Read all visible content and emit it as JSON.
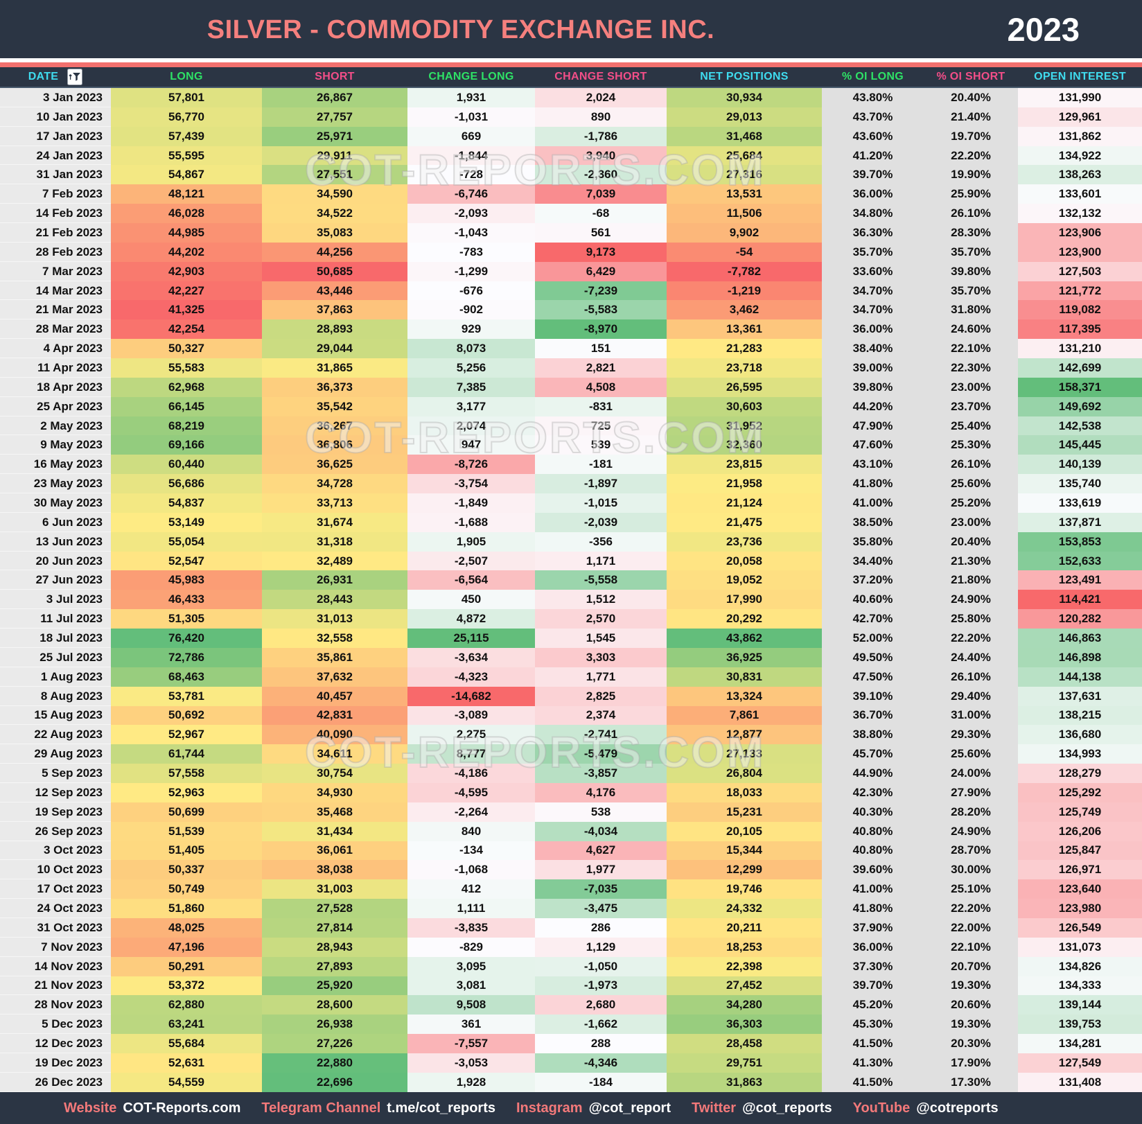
{
  "header": {
    "title": "SILVER - COMMODITY EXCHANGE INC.",
    "year": "2023"
  },
  "watermark": {
    "text": "COT-REPORTS.COM"
  },
  "columns": [
    {
      "key": "date",
      "label": "DATE",
      "color": "#3FDCEF",
      "scale": "none"
    },
    {
      "key": "long",
      "label": "LONG",
      "color": "#2EE266",
      "scale": "ryg"
    },
    {
      "key": "short",
      "label": "SHORT",
      "color": "#F34E88",
      "scale": "gyr"
    },
    {
      "key": "change_long",
      "label": "CHANGE LONG",
      "color": "#2EE266",
      "scale": "rwg"
    },
    {
      "key": "change_short",
      "label": "CHANGE SHORT",
      "color": "#F34E88",
      "scale": "gwr"
    },
    {
      "key": "net_positions",
      "label": "NET POSITIONS",
      "color": "#3FDCEF",
      "scale": "ryg"
    },
    {
      "key": "pct_oi_long",
      "label": "% OI LONG",
      "color": "#2EE266",
      "scale": "gray"
    },
    {
      "key": "pct_oi_short",
      "label": "% OI SHORT",
      "color": "#F34E88",
      "scale": "gray"
    },
    {
      "key": "open_interest",
      "label": "OPEN INTEREST",
      "color": "#3FDCEF",
      "scale": "rwg"
    }
  ],
  "scale_colors": {
    "red": "#F8696B",
    "yellow": "#FFEB84",
    "green": "#63BE7B",
    "white": "#FCFCFF",
    "gray": "#E0E0E0",
    "date_bg": "#EAEAEA"
  },
  "footer": {
    "items": [
      {
        "label": "Website",
        "value": "COT-Reports.com"
      },
      {
        "label": "Telegram Channel",
        "value": "t.me/cot_reports"
      },
      {
        "label": "Instagram",
        "value": "@cot_report"
      },
      {
        "label": "Twitter",
        "value": "@cot_reports"
      },
      {
        "label": "YouTube",
        "value": "@cotreports"
      }
    ]
  },
  "chart_data": {
    "type": "table",
    "title": "SILVER - COMMODITY EXCHANGE INC. 2023",
    "columns": [
      "DATE",
      "LONG",
      "SHORT",
      "CHANGE LONG",
      "CHANGE SHORT",
      "NET POSITIONS",
      "% OI LONG",
      "% OI SHORT",
      "OPEN INTEREST"
    ],
    "rows": [
      [
        "3 Jan 2023",
        57801,
        26867,
        1931,
        2024,
        30934,
        "43.80%",
        "20.40%",
        131990
      ],
      [
        "10 Jan 2023",
        56770,
        27757,
        -1031,
        890,
        29013,
        "43.70%",
        "21.40%",
        129961
      ],
      [
        "17 Jan 2023",
        57439,
        25971,
        669,
        -1786,
        31468,
        "43.60%",
        "19.70%",
        131862
      ],
      [
        "24 Jan 2023",
        55595,
        29911,
        -1844,
        3940,
        25684,
        "41.20%",
        "22.20%",
        134922
      ],
      [
        "31 Jan 2023",
        54867,
        27551,
        -728,
        -2360,
        27316,
        "39.70%",
        "19.90%",
        138263
      ],
      [
        "7 Feb 2023",
        48121,
        34590,
        -6746,
        7039,
        13531,
        "36.00%",
        "25.90%",
        133601
      ],
      [
        "14 Feb 2023",
        46028,
        34522,
        -2093,
        -68,
        11506,
        "34.80%",
        "26.10%",
        132132
      ],
      [
        "21 Feb 2023",
        44985,
        35083,
        -1043,
        561,
        9902,
        "36.30%",
        "28.30%",
        123906
      ],
      [
        "28 Feb 2023",
        44202,
        44256,
        -783,
        9173,
        -54,
        "35.70%",
        "35.70%",
        123900
      ],
      [
        "7 Mar 2023",
        42903,
        50685,
        -1299,
        6429,
        -7782,
        "33.60%",
        "39.80%",
        127503
      ],
      [
        "14 Mar 2023",
        42227,
        43446,
        -676,
        -7239,
        -1219,
        "34.70%",
        "35.70%",
        121772
      ],
      [
        "21 Mar 2023",
        41325,
        37863,
        -902,
        -5583,
        3462,
        "34.70%",
        "31.80%",
        119082
      ],
      [
        "28 Mar 2023",
        42254,
        28893,
        929,
        -8970,
        13361,
        "36.00%",
        "24.60%",
        117395
      ],
      [
        "4 Apr 2023",
        50327,
        29044,
        8073,
        151,
        21283,
        "38.40%",
        "22.10%",
        131210
      ],
      [
        "11 Apr 2023",
        55583,
        31865,
        5256,
        2821,
        23718,
        "39.00%",
        "22.30%",
        142699
      ],
      [
        "18 Apr 2023",
        62968,
        36373,
        7385,
        4508,
        26595,
        "39.80%",
        "23.00%",
        158371
      ],
      [
        "25 Apr 2023",
        66145,
        35542,
        3177,
        -831,
        30603,
        "44.20%",
        "23.70%",
        149692
      ],
      [
        "2 May 2023",
        68219,
        36267,
        2074,
        725,
        31952,
        "47.90%",
        "25.40%",
        142538
      ],
      [
        "9 May 2023",
        69166,
        36806,
        947,
        539,
        32360,
        "47.60%",
        "25.30%",
        145445
      ],
      [
        "16 May 2023",
        60440,
        36625,
        -8726,
        -181,
        23815,
        "43.10%",
        "26.10%",
        140139
      ],
      [
        "23 May 2023",
        56686,
        34728,
        -3754,
        -1897,
        21958,
        "41.80%",
        "25.60%",
        135740
      ],
      [
        "30 May 2023",
        54837,
        33713,
        -1849,
        -1015,
        21124,
        "41.00%",
        "25.20%",
        133619
      ],
      [
        "6 Jun 2023",
        53149,
        31674,
        -1688,
        -2039,
        21475,
        "38.50%",
        "23.00%",
        137871
      ],
      [
        "13 Jun 2023",
        55054,
        31318,
        1905,
        -356,
        23736,
        "35.80%",
        "20.40%",
        153853
      ],
      [
        "20 Jun 2023",
        52547,
        32489,
        -2507,
        1171,
        20058,
        "34.40%",
        "21.30%",
        152633
      ],
      [
        "27 Jun 2023",
        45983,
        26931,
        -6564,
        -5558,
        19052,
        "37.20%",
        "21.80%",
        123491
      ],
      [
        "3 Jul 2023",
        46433,
        28443,
        450,
        1512,
        17990,
        "40.60%",
        "24.90%",
        114421
      ],
      [
        "11 Jul 2023",
        51305,
        31013,
        4872,
        2570,
        20292,
        "42.70%",
        "25.80%",
        120282
      ],
      [
        "18 Jul 2023",
        76420,
        32558,
        25115,
        1545,
        43862,
        "52.00%",
        "22.20%",
        146863
      ],
      [
        "25 Jul 2023",
        72786,
        35861,
        -3634,
        3303,
        36925,
        "49.50%",
        "24.40%",
        146898
      ],
      [
        "1 Aug 2023",
        68463,
        37632,
        -4323,
        1771,
        30831,
        "47.50%",
        "26.10%",
        144138
      ],
      [
        "8 Aug 2023",
        53781,
        40457,
        -14682,
        2825,
        13324,
        "39.10%",
        "29.40%",
        137631
      ],
      [
        "15 Aug 2023",
        50692,
        42831,
        -3089,
        2374,
        7861,
        "36.70%",
        "31.00%",
        138215
      ],
      [
        "22 Aug 2023",
        52967,
        40090,
        2275,
        -2741,
        12877,
        "38.80%",
        "29.30%",
        136680
      ],
      [
        "29 Aug 2023",
        61744,
        34611,
        8777,
        -5479,
        27133,
        "45.70%",
        "25.60%",
        134993
      ],
      [
        "5 Sep 2023",
        57558,
        30754,
        -4186,
        -3857,
        26804,
        "44.90%",
        "24.00%",
        128279
      ],
      [
        "12 Sep 2023",
        52963,
        34930,
        -4595,
        4176,
        18033,
        "42.30%",
        "27.90%",
        125292
      ],
      [
        "19 Sep 2023",
        50699,
        35468,
        -2264,
        538,
        15231,
        "40.30%",
        "28.20%",
        125749
      ],
      [
        "26 Sep 2023",
        51539,
        31434,
        840,
        -4034,
        20105,
        "40.80%",
        "24.90%",
        126206
      ],
      [
        "3 Oct 2023",
        51405,
        36061,
        -134,
        4627,
        15344,
        "40.80%",
        "28.70%",
        125847
      ],
      [
        "10 Oct 2023",
        50337,
        38038,
        -1068,
        1977,
        12299,
        "39.60%",
        "30.00%",
        126971
      ],
      [
        "17 Oct 2023",
        50749,
        31003,
        412,
        -7035,
        19746,
        "41.00%",
        "25.10%",
        123640
      ],
      [
        "24 Oct 2023",
        51860,
        27528,
        1111,
        -3475,
        24332,
        "41.80%",
        "22.20%",
        123980
      ],
      [
        "31 Oct 2023",
        48025,
        27814,
        -3835,
        286,
        20211,
        "37.90%",
        "22.00%",
        126549
      ],
      [
        "7 Nov 2023",
        47196,
        28943,
        -829,
        1129,
        18253,
        "36.00%",
        "22.10%",
        131073
      ],
      [
        "14 Nov 2023",
        50291,
        27893,
        3095,
        -1050,
        22398,
        "37.30%",
        "20.70%",
        134826
      ],
      [
        "21 Nov 2023",
        53372,
        25920,
        3081,
        -1973,
        27452,
        "39.70%",
        "19.30%",
        134333
      ],
      [
        "28 Nov 2023",
        62880,
        28600,
        9508,
        2680,
        34280,
        "45.20%",
        "20.60%",
        139144
      ],
      [
        "5 Dec 2023",
        63241,
        26938,
        361,
        -1662,
        36303,
        "45.30%",
        "19.30%",
        139753
      ],
      [
        "12 Dec 2023",
        55684,
        27226,
        -7557,
        288,
        28458,
        "41.50%",
        "20.30%",
        134281
      ],
      [
        "19 Dec 2023",
        52631,
        22880,
        -3053,
        -4346,
        29751,
        "41.30%",
        "17.90%",
        127549
      ],
      [
        "26 Dec 2023",
        54559,
        22696,
        1928,
        -184,
        31863,
        "41.50%",
        "17.30%",
        131408
      ]
    ]
  }
}
